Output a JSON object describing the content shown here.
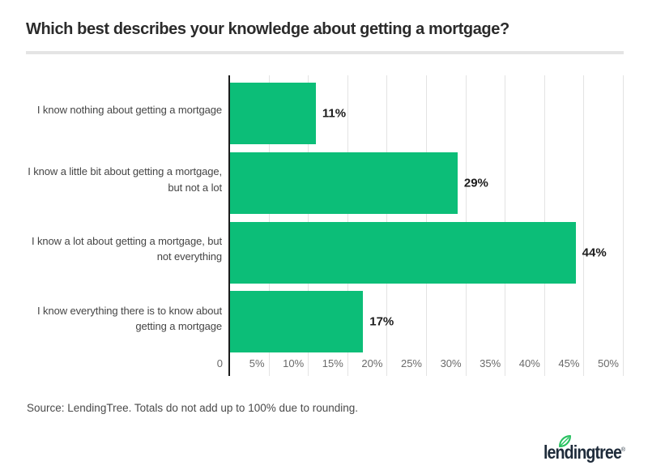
{
  "title": "Which best describes your knowledge about getting a mortgage?",
  "chart_data": {
    "type": "bar",
    "orientation": "horizontal",
    "categories": [
      "I know nothing about getting a mortgage",
      "I know a little bit about getting a mortgage,\nbut not a lot",
      "I know a lot about getting a mortgage, but\nnot everything",
      "I know everything there is to know about\ngetting a mortgage"
    ],
    "values": [
      11,
      29,
      44,
      17
    ],
    "value_labels": [
      "11%",
      "29%",
      "44%",
      "17%"
    ],
    "xlim": [
      0,
      50
    ],
    "x_ticks": [
      "0",
      "5%",
      "10%",
      "15%",
      "20%",
      "25%",
      "30%",
      "35%",
      "40%",
      "45%",
      "50%"
    ],
    "grid": true,
    "legend": "none",
    "bar_color": "#0cbe78"
  },
  "footer": {
    "source_note": "Source: LendingTree. Totals do not add up to 100% due to rounding.",
    "logo_text": "lendingtree",
    "logo_reg": "®"
  },
  "colors": {
    "bar_green": "#0cbe78",
    "leaf_green": "#28c160",
    "logo_navy": "#1e2b3a",
    "axis_dark": "#1c1c1c",
    "gridline_gray": "#e3e3e3",
    "divider_gray": "#e4e4e4",
    "title_dark": "#2b2b2b",
    "label_gray": "#454545",
    "tick_gray": "#6a6a6a",
    "value_dark": "#1c1c1c",
    "source_gray": "#4a4a4a"
  }
}
